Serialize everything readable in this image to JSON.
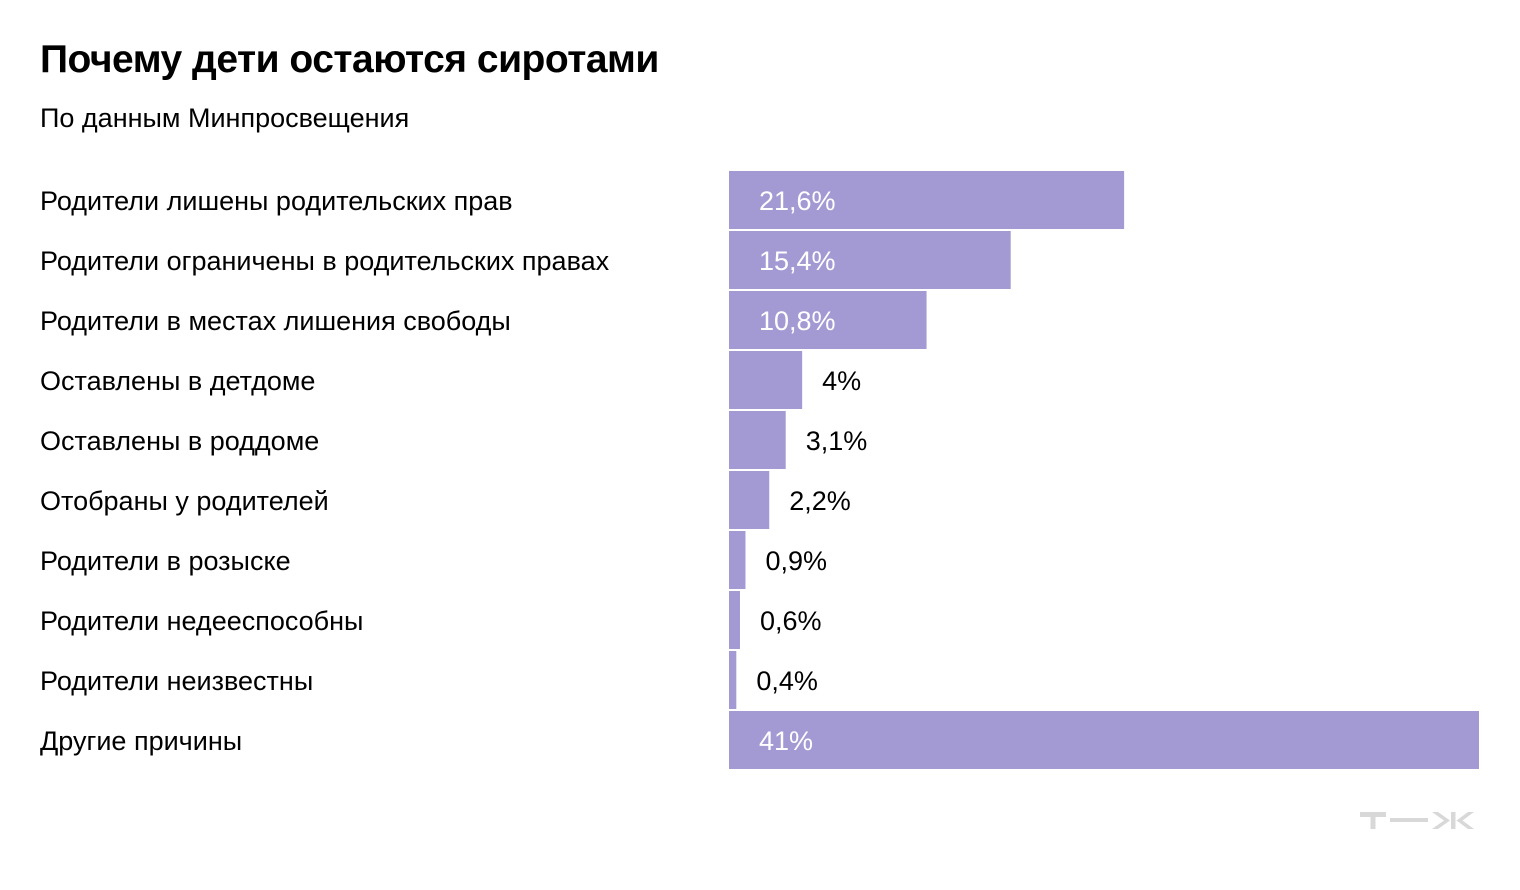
{
  "header": {
    "title": "Почему дети остаются сиротами",
    "subtitle": "По данным Минпросвещения"
  },
  "logo": {
    "text": "т—ж",
    "color": "#d8d8d8"
  },
  "colors": {
    "bar": "#a39ad4",
    "label_inside": "#ffffff",
    "label_outside": "#000000",
    "text": "#000000"
  },
  "chart_data": {
    "type": "bar",
    "orientation": "horizontal",
    "categories": [
      "Родители лишены родительских прав",
      "Родители ограничены в родительских правах",
      "Родители в местах лишения свободы",
      "Оставлены в детдоме",
      "Оставлены в роддоме",
      "Отобраны у родителей",
      "Родители в розыске",
      "Родители недееспособны",
      "Родители неизвестны",
      "Другие причины"
    ],
    "values": [
      21.6,
      15.4,
      10.8,
      4,
      3.1,
      2.2,
      0.9,
      0.6,
      0.4,
      41
    ],
    "value_labels": [
      "21,6%",
      "15,4%",
      "10,8%",
      "4%",
      "3,1%",
      "2,2%",
      "0,9%",
      "0,6%",
      "0,4%",
      "41%"
    ],
    "unit": "%",
    "xlim": [
      0,
      41
    ],
    "grid": false,
    "legend": "none"
  }
}
